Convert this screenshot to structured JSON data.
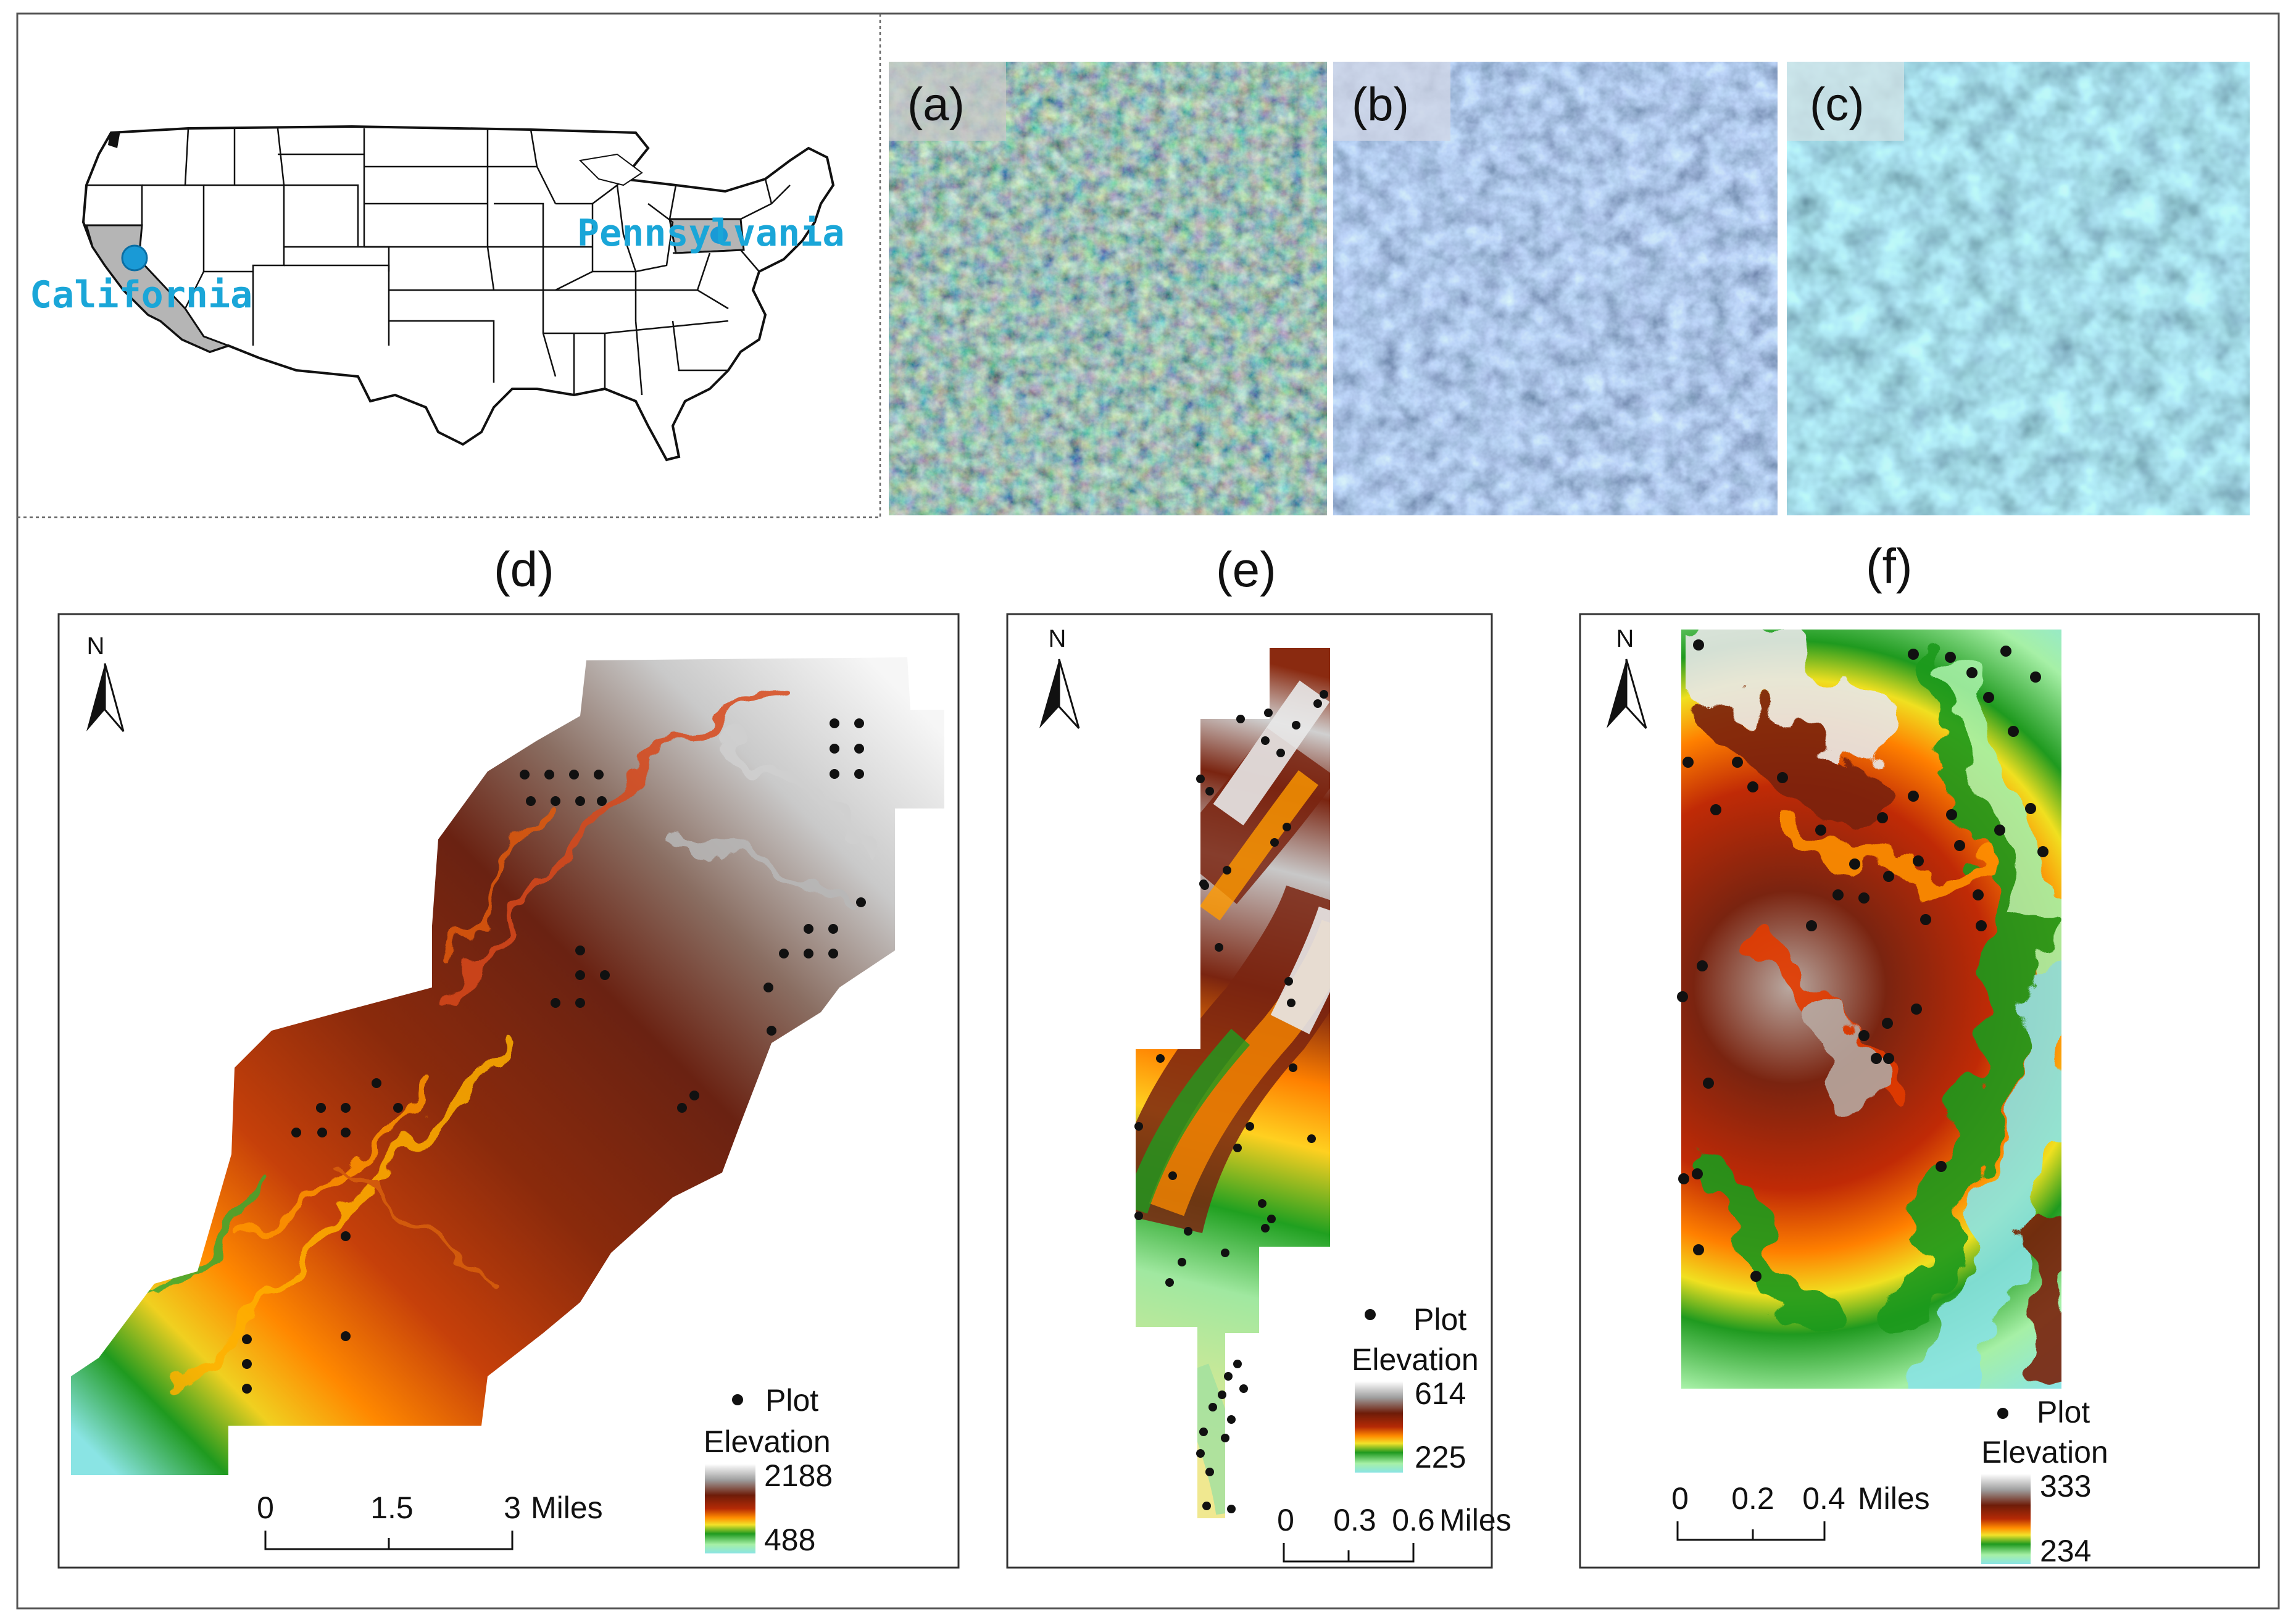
{
  "us_map": {
    "state_labels": [
      "California",
      "Pennsylvania"
    ],
    "label_color": "#1aa6d8",
    "highlight_fill": "#b5b5b5",
    "marker_color": "#1a9ad6"
  },
  "imagery": {
    "panels": [
      {
        "label": "(a)",
        "tone": "natural-color"
      },
      {
        "label": "(b)",
        "tone": "blue-tint"
      },
      {
        "label": "(c)",
        "tone": "cyan-tint"
      }
    ]
  },
  "elevation_maps": [
    {
      "title": "(d)",
      "north": "N",
      "legend": {
        "plot_label": "Plot",
        "elevation_label": "Elevation",
        "max": "2188",
        "min": "488"
      },
      "scale_bar": {
        "ticks": [
          "0",
          "1.5",
          "3"
        ],
        "unit": "Miles"
      }
    },
    {
      "title": "(e)",
      "north": "N",
      "legend": {
        "plot_label": "Plot",
        "elevation_label": "Elevation",
        "max": "614",
        "min": "225"
      },
      "scale_bar": {
        "ticks": [
          "0",
          "0.3",
          "0.6"
        ],
        "unit": "Miles"
      }
    },
    {
      "title": "(f)",
      "north": "N",
      "legend": {
        "plot_label": "Plot",
        "elevation_label": "Elevation",
        "max": "333",
        "min": "234"
      },
      "scale_bar": {
        "ticks": [
          "0",
          "0.2",
          "0.4"
        ],
        "unit": "Miles"
      }
    }
  ],
  "elevation_ramp": [
    "#ffffff",
    "#b0b0b0",
    "#7a2a10",
    "#a02808",
    "#e33a00",
    "#ff9a00",
    "#f5e32a",
    "#20a020",
    "#008a20",
    "#9ef0a0",
    "#7fe0e0"
  ]
}
